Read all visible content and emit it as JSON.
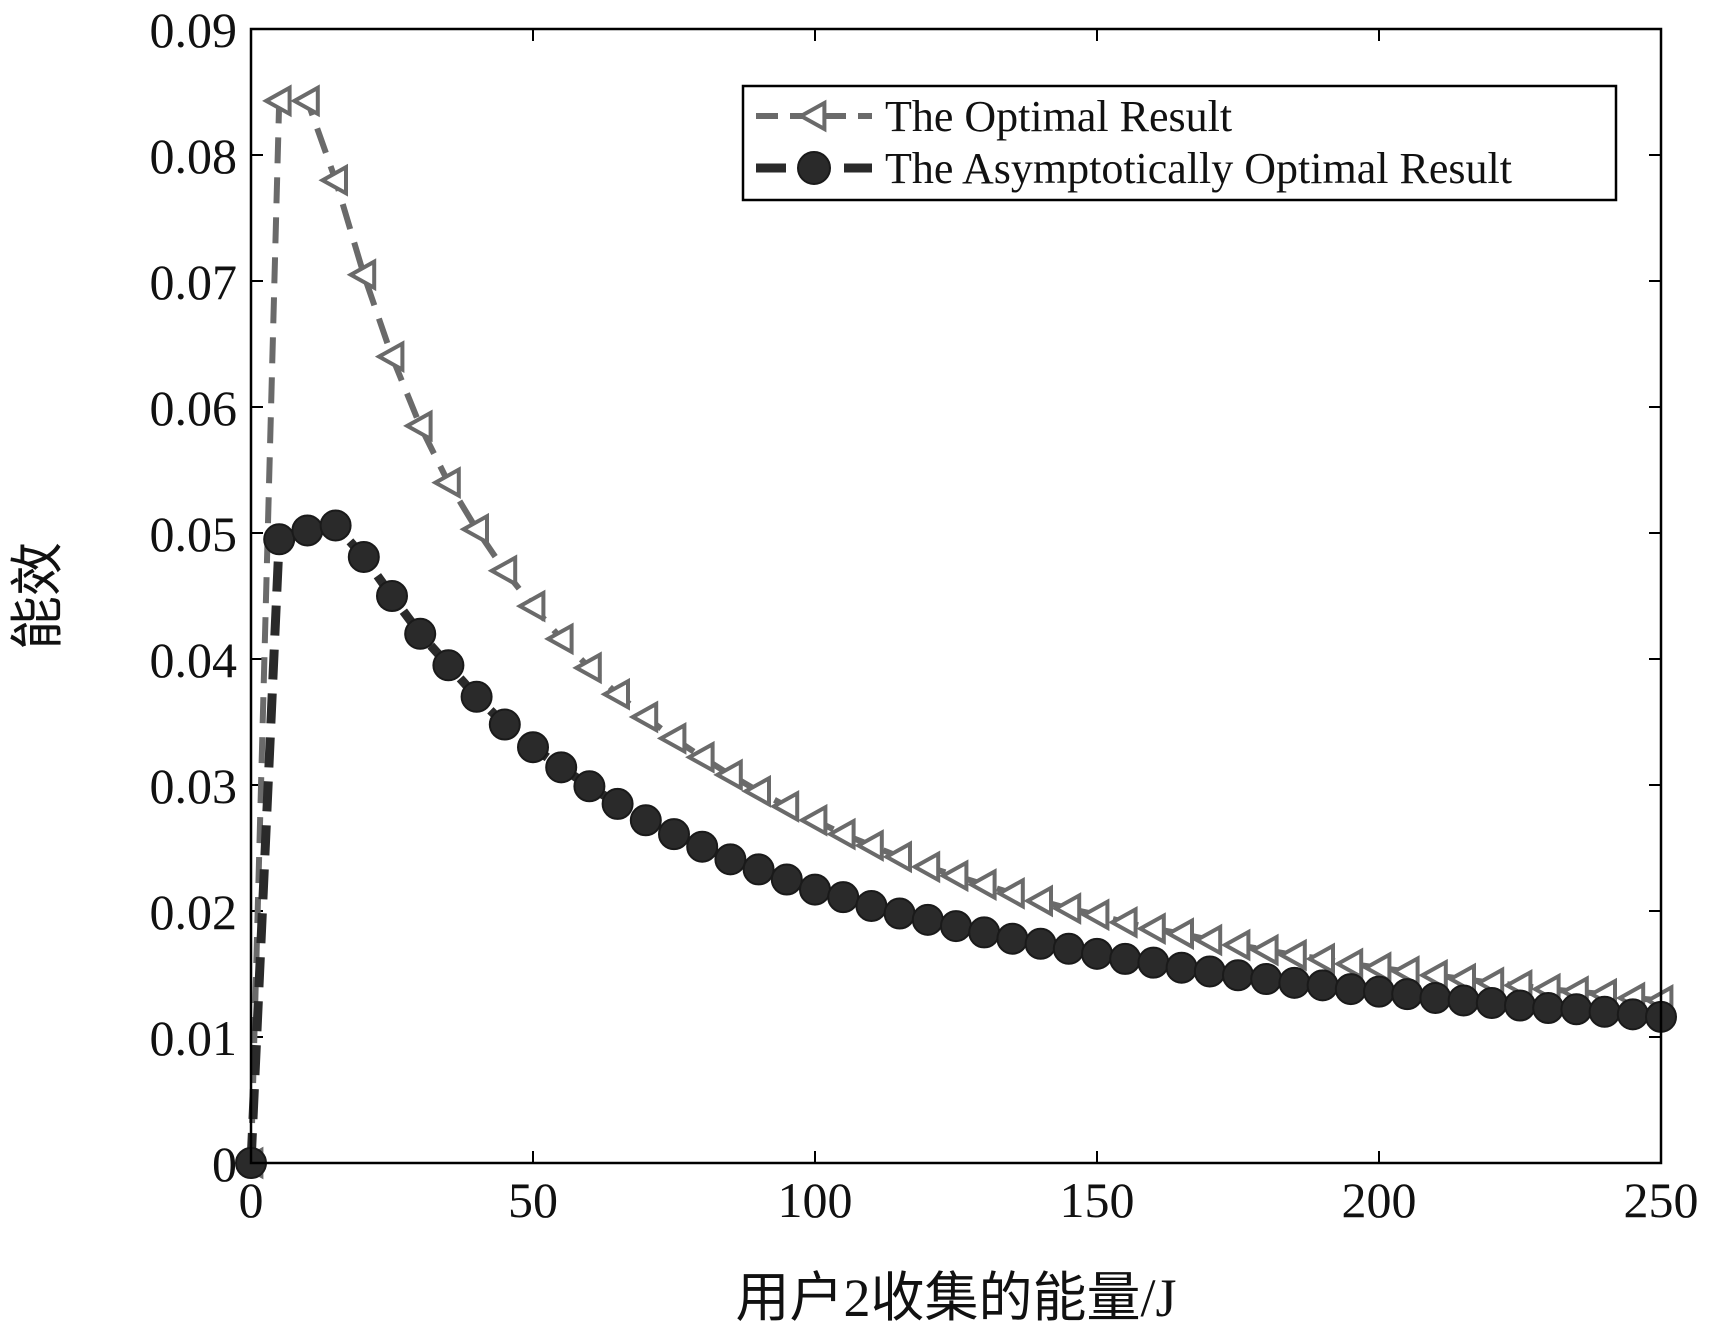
{
  "chart_data": {
    "type": "line",
    "title": "",
    "xlabel": "用户2收集的能量/J",
    "ylabel": "能效",
    "xlim": [
      0,
      250
    ],
    "ylim": [
      0,
      0.09
    ],
    "xticks": [
      0,
      50,
      100,
      150,
      200,
      250
    ],
    "xtick_labels": [
      "0",
      "50",
      "100",
      "150",
      "200",
      "250"
    ],
    "yticks": [
      0,
      0.01,
      0.02,
      0.03,
      0.04,
      0.05,
      0.06,
      0.07,
      0.08,
      0.09
    ],
    "ytick_labels": [
      "0",
      "0.01",
      "0.02",
      "0.03",
      "0.04",
      "0.05",
      "0.06",
      "0.07",
      "0.08",
      "0.09"
    ],
    "grid": false,
    "legend_position": "top-right",
    "x": [
      0,
      5,
      10,
      15,
      20,
      25,
      30,
      35,
      40,
      45,
      50,
      55,
      60,
      65,
      70,
      75,
      80,
      85,
      90,
      95,
      100,
      105,
      110,
      115,
      120,
      125,
      130,
      135,
      140,
      145,
      150,
      155,
      160,
      165,
      170,
      175,
      180,
      185,
      190,
      195,
      200,
      205,
      210,
      215,
      220,
      225,
      230,
      235,
      240,
      245,
      250
    ],
    "series": [
      {
        "name": "The Optimal Result",
        "color": "#6a6a6a",
        "marker": "triangle-left",
        "line": "dashed",
        "values": [
          0,
          0.0843,
          0.0843,
          0.078,
          0.0705,
          0.064,
          0.0585,
          0.054,
          0.0503,
          0.047,
          0.0442,
          0.0416,
          0.0393,
          0.0372,
          0.0354,
          0.0337,
          0.0322,
          0.0308,
          0.0295,
          0.0283,
          0.0272,
          0.0261,
          0.0252,
          0.0243,
          0.0235,
          0.0228,
          0.0221,
          0.0214,
          0.0208,
          0.0202,
          0.0197,
          0.0191,
          0.0186,
          0.0182,
          0.0177,
          0.0173,
          0.0169,
          0.0165,
          0.0162,
          0.0158,
          0.0155,
          0.0152,
          0.0149,
          0.0146,
          0.0143,
          0.0141,
          0.0138,
          0.0136,
          0.0134,
          0.0131,
          0.0129
        ]
      },
      {
        "name": "The Asymptotically Optimal Result",
        "color": "#2a2a2a",
        "marker": "circle",
        "line": "dashed",
        "values": [
          0,
          0.0495,
          0.0502,
          0.0506,
          0.0481,
          0.045,
          0.042,
          0.0395,
          0.037,
          0.0348,
          0.033,
          0.0314,
          0.0299,
          0.0285,
          0.0272,
          0.0261,
          0.0251,
          0.0241,
          0.0233,
          0.0225,
          0.0217,
          0.0211,
          0.0204,
          0.0198,
          0.0193,
          0.0188,
          0.0183,
          0.0178,
          0.0174,
          0.017,
          0.0166,
          0.0162,
          0.0159,
          0.0155,
          0.0152,
          0.0149,
          0.0146,
          0.0143,
          0.0141,
          0.0138,
          0.0136,
          0.0134,
          0.0131,
          0.0129,
          0.0127,
          0.0125,
          0.0123,
          0.0122,
          0.012,
          0.0118,
          0.0116
        ]
      }
    ]
  }
}
